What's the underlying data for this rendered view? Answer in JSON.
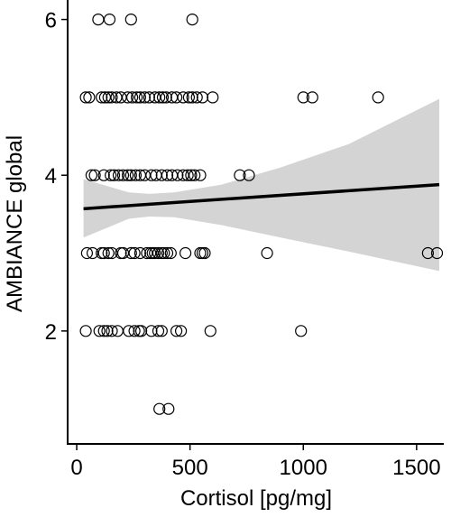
{
  "chart_data": {
    "type": "scatter",
    "xlabel": "Cortisol [pg/mg]",
    "ylabel": "AMBIANCE global",
    "xlim": [
      -40,
      1620
    ],
    "ylim": [
      0.55,
      6.25
    ],
    "x_ticks": [
      0,
      500,
      1000,
      1500
    ],
    "y_ticks": [
      2,
      4,
      6
    ],
    "grid": false,
    "colors": {
      "points": "#000000",
      "band": "#d4d4d4",
      "line": "#000000"
    },
    "trend_line": {
      "x": [
        30,
        1600
      ],
      "y": [
        3.57,
        3.88
      ]
    },
    "confidence_band": {
      "x": [
        30,
        230,
        320,
        430,
        640,
        900,
        1200,
        1600
      ],
      "lower": [
        3.2,
        3.44,
        3.47,
        3.46,
        3.36,
        3.2,
        3.02,
        2.77
      ],
      "upper": [
        3.95,
        3.78,
        3.76,
        3.78,
        3.88,
        4.1,
        4.4,
        4.98
      ]
    },
    "series": [
      {
        "values": [
          [
            95,
            6
          ],
          [
            145,
            6
          ],
          [
            240,
            6
          ],
          [
            510,
            6
          ],
          [
            40,
            5
          ],
          [
            55,
            5
          ],
          [
            110,
            5
          ],
          [
            125,
            5
          ],
          [
            140,
            5
          ],
          [
            155,
            5
          ],
          [
            175,
            5
          ],
          [
            195,
            5
          ],
          [
            225,
            5
          ],
          [
            245,
            5
          ],
          [
            265,
            5
          ],
          [
            280,
            5
          ],
          [
            300,
            5
          ],
          [
            320,
            5
          ],
          [
            345,
            5
          ],
          [
            365,
            5
          ],
          [
            380,
            5
          ],
          [
            395,
            5
          ],
          [
            420,
            5
          ],
          [
            440,
            5
          ],
          [
            470,
            5
          ],
          [
            495,
            5
          ],
          [
            510,
            5
          ],
          [
            530,
            5
          ],
          [
            555,
            5
          ],
          [
            600,
            5
          ],
          [
            1000,
            5
          ],
          [
            1040,
            5
          ],
          [
            1330,
            5
          ],
          [
            65,
            4
          ],
          [
            80,
            4
          ],
          [
            120,
            4
          ],
          [
            150,
            4
          ],
          [
            165,
            4
          ],
          [
            185,
            4
          ],
          [
            205,
            4
          ],
          [
            225,
            4
          ],
          [
            240,
            4
          ],
          [
            260,
            4
          ],
          [
            280,
            4
          ],
          [
            300,
            4
          ],
          [
            330,
            4
          ],
          [
            350,
            4
          ],
          [
            375,
            4
          ],
          [
            400,
            4
          ],
          [
            420,
            4
          ],
          [
            445,
            4
          ],
          [
            470,
            4
          ],
          [
            490,
            4
          ],
          [
            505,
            4
          ],
          [
            520,
            4
          ],
          [
            545,
            4
          ],
          [
            720,
            4
          ],
          [
            760,
            4
          ],
          [
            45,
            3
          ],
          [
            70,
            3
          ],
          [
            110,
            3
          ],
          [
            120,
            3
          ],
          [
            140,
            3
          ],
          [
            155,
            3
          ],
          [
            195,
            3
          ],
          [
            205,
            3
          ],
          [
            240,
            3
          ],
          [
            255,
            3
          ],
          [
            280,
            3
          ],
          [
            310,
            3
          ],
          [
            325,
            3
          ],
          [
            335,
            3
          ],
          [
            345,
            3
          ],
          [
            360,
            3
          ],
          [
            375,
            3
          ],
          [
            385,
            3
          ],
          [
            400,
            3
          ],
          [
            415,
            3
          ],
          [
            480,
            3
          ],
          [
            545,
            3
          ],
          [
            555,
            3
          ],
          [
            565,
            3
          ],
          [
            840,
            3
          ],
          [
            1550,
            3
          ],
          [
            1590,
            3
          ],
          [
            40,
            2
          ],
          [
            100,
            2
          ],
          [
            120,
            2
          ],
          [
            135,
            2
          ],
          [
            155,
            2
          ],
          [
            180,
            2
          ],
          [
            230,
            2
          ],
          [
            255,
            2
          ],
          [
            275,
            2
          ],
          [
            285,
            2
          ],
          [
            330,
            2
          ],
          [
            360,
            2
          ],
          [
            375,
            2
          ],
          [
            440,
            2
          ],
          [
            460,
            2
          ],
          [
            590,
            2
          ],
          [
            990,
            2
          ],
          [
            365,
            1
          ],
          [
            405,
            1
          ]
        ]
      }
    ]
  }
}
